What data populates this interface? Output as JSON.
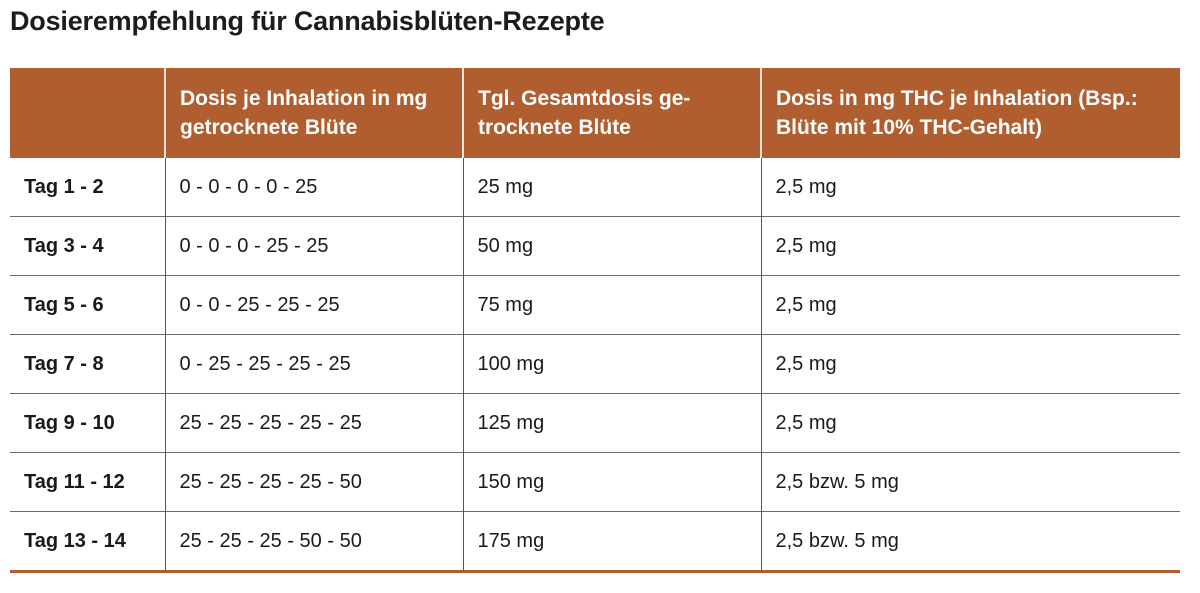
{
  "title": "Dosierempfehlung für Cannabisblüten-Rezepte",
  "accent_color": "#b05e30",
  "table": {
    "headers": [
      "",
      "Dosis je Inhalation in mg getrocknete Blüte",
      "Tgl. Gesamtdosis ge-trocknete Blüte",
      "Dosis in mg THC je Inhalation (Bsp.: Blüte mit 10% THC-Gehalt)"
    ],
    "rows": [
      [
        "Tag 1 - 2",
        "0 - 0 - 0 - 0 - 25",
        "25 mg",
        "2,5 mg"
      ],
      [
        "Tag 3 - 4",
        "0 - 0 - 0 - 25 - 25",
        "50 mg",
        "2,5 mg"
      ],
      [
        "Tag 5 - 6",
        "0 - 0 - 25 - 25 - 25",
        "75 mg",
        "2,5 mg"
      ],
      [
        "Tag 7 - 8",
        "0 - 25 - 25 - 25 - 25",
        "100 mg",
        "2,5 mg"
      ],
      [
        "Tag 9 - 10",
        "25 - 25 - 25 - 25 - 25",
        "125 mg",
        "2,5 mg"
      ],
      [
        "Tag 11 - 12",
        "25 - 25 - 25 - 25 - 50",
        "150 mg",
        "2,5 bzw. 5 mg"
      ],
      [
        "Tag 13 - 14",
        "25 - 25 - 25 - 50 - 50",
        "175 mg",
        "2,5 bzw. 5 mg"
      ]
    ]
  }
}
